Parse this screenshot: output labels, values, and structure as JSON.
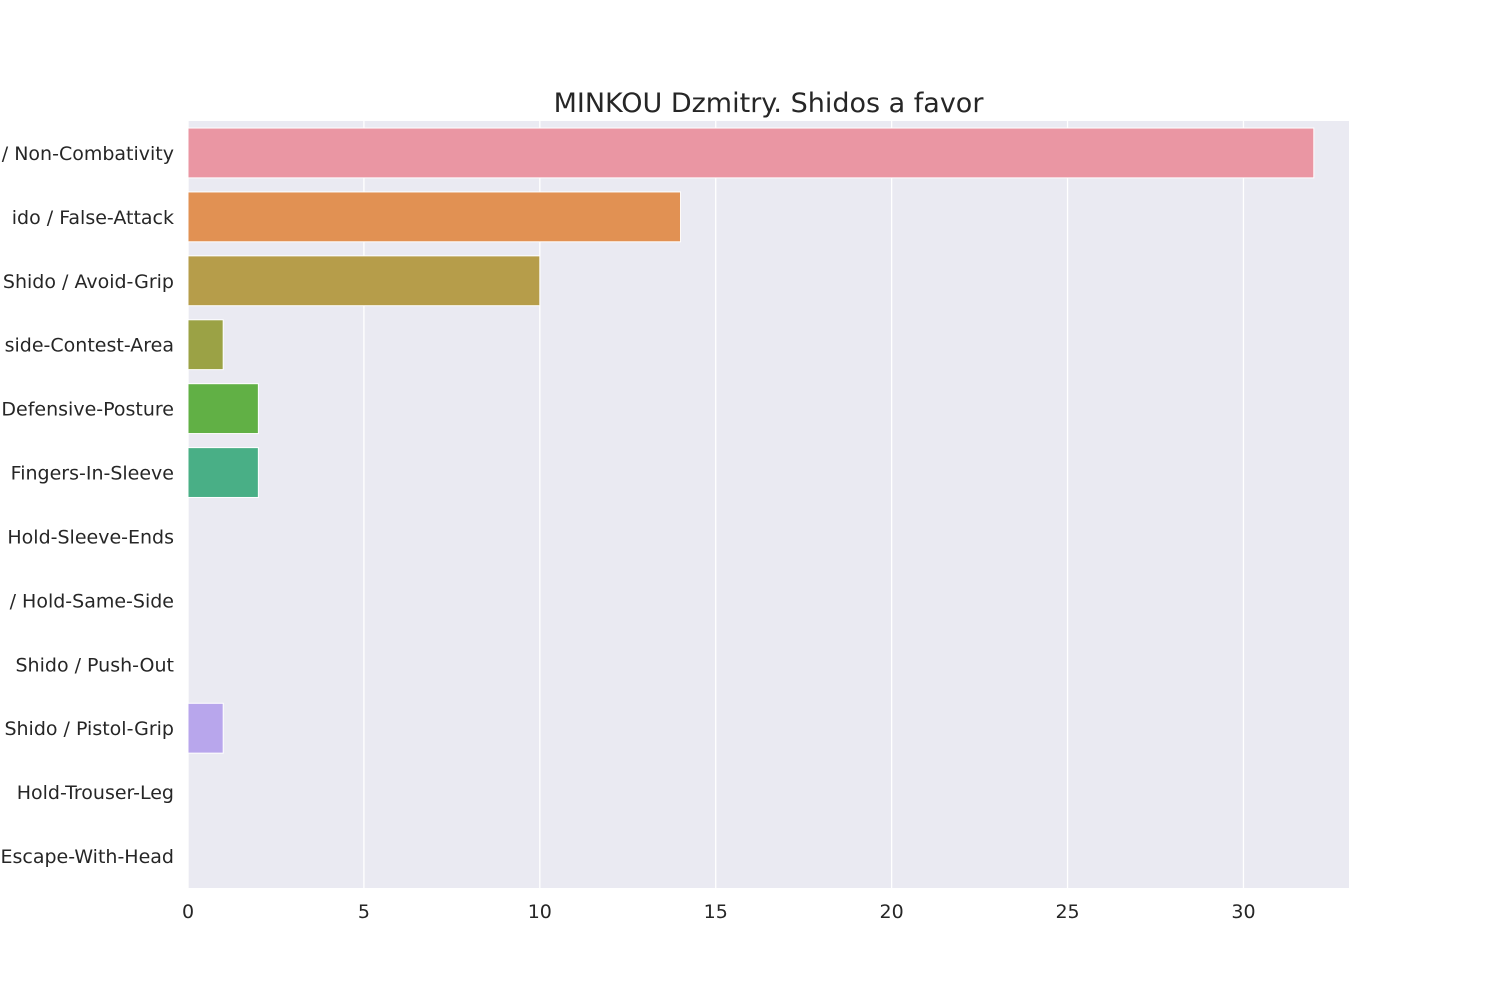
{
  "chart_data": {
    "type": "bar",
    "orientation": "horizontal",
    "title": "MINKOU Dzmitry. Shidos a favor",
    "xlabel": "",
    "ylabel": "",
    "categories_visible": [
      "/ Non-Combativity",
      "ido / False-Attack",
      "Shido / Avoid-Grip",
      "side-Contest-Area",
      "Defensive-Posture",
      "Fingers-In-Sleeve",
      "Hold-Sleeve-Ends",
      "/ Hold-Same-Side",
      "Shido / Push-Out",
      "Shido / Pistol-Grip",
      "Hold-Trouser-Leg",
      "Escape-With-Head"
    ],
    "values": [
      32,
      14,
      10,
      1,
      2,
      2,
      0,
      0,
      0,
      1,
      0,
      0
    ],
    "colors": [
      "#ea96a3",
      "#e19153",
      "#b69d4a",
      "#9ba245",
      "#61b045",
      "#49af86",
      "#4eaab5",
      "#56a9d9",
      "#8ea8ef",
      "#b8a6ec",
      "#d98fe6",
      "#eb8fc5"
    ],
    "xlim": [
      0,
      33
    ],
    "xticks": [
      0,
      5,
      10,
      15,
      20,
      25,
      30
    ],
    "grid": true,
    "background": "#eaeaf2",
    "legend": "none"
  }
}
